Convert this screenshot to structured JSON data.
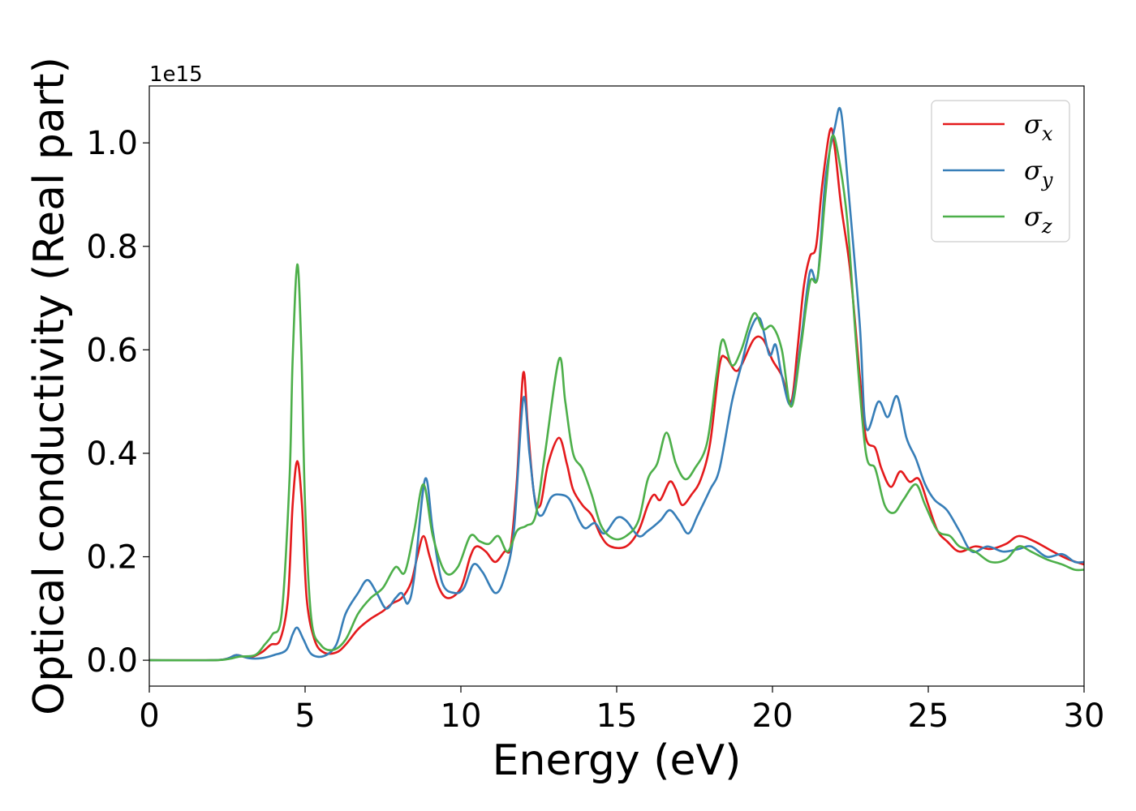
{
  "chart_data": {
    "type": "line",
    "xlabel": "Energy (eV)",
    "ylabel": "Optical conductivity (Real part)",
    "y_offset_label": "1e15",
    "y_scale": 1000000000000000.0,
    "xlim": [
      0,
      30
    ],
    "ylim": [
      -0.05,
      1.11
    ],
    "xticks": [
      0,
      5,
      10,
      15,
      20,
      25,
      30
    ],
    "xtick_labels": [
      "0",
      "5",
      "10",
      "15",
      "20",
      "25",
      "30"
    ],
    "yticks": [
      0.0,
      0.2,
      0.4,
      0.6,
      0.8,
      1.0
    ],
    "ytick_labels": [
      "0.0",
      "0.2",
      "0.4",
      "0.6",
      "0.8",
      "1.0"
    ],
    "grid": false,
    "legend_position": "top-right",
    "series": [
      {
        "name": "σ",
        "subscript": "x",
        "color": "#e41a1c",
        "points": [
          [
            0,
            0
          ],
          [
            2,
            0.0
          ],
          [
            2.5,
            0.003
          ],
          [
            2.8,
            0.01
          ],
          [
            3.2,
            0.005
          ],
          [
            3.6,
            0.015
          ],
          [
            3.9,
            0.03
          ],
          [
            4.2,
            0.04
          ],
          [
            4.45,
            0.12
          ],
          [
            4.6,
            0.3
          ],
          [
            4.75,
            0.385
          ],
          [
            4.9,
            0.3
          ],
          [
            5.05,
            0.12
          ],
          [
            5.3,
            0.04
          ],
          [
            5.6,
            0.015
          ],
          [
            6.0,
            0.015
          ],
          [
            6.3,
            0.03
          ],
          [
            6.7,
            0.06
          ],
          [
            7.1,
            0.08
          ],
          [
            7.5,
            0.095
          ],
          [
            7.8,
            0.11
          ],
          [
            8.1,
            0.12
          ],
          [
            8.4,
            0.15
          ],
          [
            8.6,
            0.2
          ],
          [
            8.8,
            0.24
          ],
          [
            9.0,
            0.2
          ],
          [
            9.3,
            0.14
          ],
          [
            9.6,
            0.12
          ],
          [
            10.0,
            0.14
          ],
          [
            10.3,
            0.2
          ],
          [
            10.5,
            0.22
          ],
          [
            10.8,
            0.21
          ],
          [
            11.1,
            0.19
          ],
          [
            11.4,
            0.21
          ],
          [
            11.6,
            0.22
          ],
          [
            11.8,
            0.35
          ],
          [
            12.0,
            0.555
          ],
          [
            12.15,
            0.45
          ],
          [
            12.35,
            0.32
          ],
          [
            12.55,
            0.3
          ],
          [
            12.8,
            0.38
          ],
          [
            13.15,
            0.43
          ],
          [
            13.4,
            0.38
          ],
          [
            13.6,
            0.33
          ],
          [
            13.9,
            0.3
          ],
          [
            14.2,
            0.28
          ],
          [
            14.5,
            0.24
          ],
          [
            14.8,
            0.22
          ],
          [
            15.3,
            0.22
          ],
          [
            15.7,
            0.25
          ],
          [
            16.0,
            0.3
          ],
          [
            16.2,
            0.32
          ],
          [
            16.4,
            0.31
          ],
          [
            16.7,
            0.345
          ],
          [
            16.9,
            0.33
          ],
          [
            17.1,
            0.3
          ],
          [
            17.4,
            0.32
          ],
          [
            17.7,
            0.35
          ],
          [
            18.0,
            0.42
          ],
          [
            18.3,
            0.57
          ],
          [
            18.5,
            0.585
          ],
          [
            18.8,
            0.56
          ],
          [
            19.0,
            0.57
          ],
          [
            19.4,
            0.62
          ],
          [
            19.7,
            0.62
          ],
          [
            20.0,
            0.58
          ],
          [
            20.3,
            0.55
          ],
          [
            20.6,
            0.5
          ],
          [
            20.8,
            0.6
          ],
          [
            21.0,
            0.72
          ],
          [
            21.2,
            0.78
          ],
          [
            21.4,
            0.8
          ],
          [
            21.6,
            0.92
          ],
          [
            21.85,
            1.025
          ],
          [
            22.0,
            0.99
          ],
          [
            22.2,
            0.88
          ],
          [
            22.5,
            0.75
          ],
          [
            22.8,
            0.55
          ],
          [
            23.0,
            0.43
          ],
          [
            23.3,
            0.41
          ],
          [
            23.5,
            0.37
          ],
          [
            23.8,
            0.335
          ],
          [
            24.1,
            0.365
          ],
          [
            24.4,
            0.345
          ],
          [
            24.7,
            0.35
          ],
          [
            25.0,
            0.3
          ],
          [
            25.3,
            0.25
          ],
          [
            25.6,
            0.23
          ],
          [
            26.0,
            0.21
          ],
          [
            26.5,
            0.22
          ],
          [
            27.0,
            0.215
          ],
          [
            27.5,
            0.225
          ],
          [
            27.9,
            0.24
          ],
          [
            28.4,
            0.23
          ],
          [
            29.0,
            0.21
          ],
          [
            29.5,
            0.195
          ],
          [
            30.0,
            0.185
          ]
        ]
      },
      {
        "name": "σ",
        "subscript": "y",
        "color": "#377eb8",
        "points": [
          [
            0,
            0
          ],
          [
            2,
            0.0
          ],
          [
            2.5,
            0.003
          ],
          [
            2.8,
            0.01
          ],
          [
            3.2,
            0.004
          ],
          [
            3.6,
            0.004
          ],
          [
            4.0,
            0.01
          ],
          [
            4.4,
            0.02
          ],
          [
            4.6,
            0.05
          ],
          [
            4.75,
            0.063
          ],
          [
            4.95,
            0.04
          ],
          [
            5.2,
            0.012
          ],
          [
            5.6,
            0.008
          ],
          [
            6.0,
            0.03
          ],
          [
            6.3,
            0.09
          ],
          [
            6.7,
            0.13
          ],
          [
            7.0,
            0.155
          ],
          [
            7.3,
            0.13
          ],
          [
            7.6,
            0.1
          ],
          [
            7.9,
            0.12
          ],
          [
            8.1,
            0.13
          ],
          [
            8.3,
            0.11
          ],
          [
            8.5,
            0.16
          ],
          [
            8.85,
            0.35
          ],
          [
            9.1,
            0.25
          ],
          [
            9.4,
            0.15
          ],
          [
            9.8,
            0.13
          ],
          [
            10.1,
            0.14
          ],
          [
            10.4,
            0.185
          ],
          [
            10.7,
            0.17
          ],
          [
            11.1,
            0.13
          ],
          [
            11.4,
            0.16
          ],
          [
            11.7,
            0.25
          ],
          [
            12.0,
            0.505
          ],
          [
            12.2,
            0.4
          ],
          [
            12.4,
            0.3
          ],
          [
            12.6,
            0.28
          ],
          [
            12.9,
            0.315
          ],
          [
            13.2,
            0.32
          ],
          [
            13.5,
            0.31
          ],
          [
            13.8,
            0.27
          ],
          [
            14.0,
            0.255
          ],
          [
            14.3,
            0.265
          ],
          [
            14.6,
            0.245
          ],
          [
            15.0,
            0.275
          ],
          [
            15.3,
            0.27
          ],
          [
            15.7,
            0.24
          ],
          [
            16.0,
            0.25
          ],
          [
            16.4,
            0.27
          ],
          [
            16.7,
            0.29
          ],
          [
            17.0,
            0.27
          ],
          [
            17.3,
            0.245
          ],
          [
            17.6,
            0.28
          ],
          [
            18.0,
            0.33
          ],
          [
            18.3,
            0.37
          ],
          [
            18.7,
            0.5
          ],
          [
            19.0,
            0.57
          ],
          [
            19.3,
            0.64
          ],
          [
            19.6,
            0.66
          ],
          [
            19.9,
            0.59
          ],
          [
            20.1,
            0.61
          ],
          [
            20.3,
            0.55
          ],
          [
            20.6,
            0.495
          ],
          [
            20.9,
            0.61
          ],
          [
            21.2,
            0.75
          ],
          [
            21.45,
            0.74
          ],
          [
            21.7,
            0.93
          ],
          [
            22.0,
            1.03
          ],
          [
            22.2,
            1.06
          ],
          [
            22.45,
            0.9
          ],
          [
            22.8,
            0.65
          ],
          [
            23.0,
            0.45
          ],
          [
            23.4,
            0.5
          ],
          [
            23.7,
            0.47
          ],
          [
            24.0,
            0.51
          ],
          [
            24.3,
            0.43
          ],
          [
            24.6,
            0.39
          ],
          [
            24.9,
            0.34
          ],
          [
            25.2,
            0.31
          ],
          [
            25.6,
            0.29
          ],
          [
            26.0,
            0.25
          ],
          [
            26.4,
            0.21
          ],
          [
            26.9,
            0.22
          ],
          [
            27.4,
            0.21
          ],
          [
            27.9,
            0.215
          ],
          [
            28.3,
            0.22
          ],
          [
            28.8,
            0.2
          ],
          [
            29.3,
            0.205
          ],
          [
            29.7,
            0.19
          ],
          [
            30.0,
            0.19
          ]
        ]
      },
      {
        "name": "σ",
        "subscript": "z",
        "color": "#4daf4a",
        "points": [
          [
            0,
            0
          ],
          [
            2,
            0.0
          ],
          [
            2.5,
            0.002
          ],
          [
            2.9,
            0.007
          ],
          [
            3.4,
            0.01
          ],
          [
            3.7,
            0.03
          ],
          [
            3.95,
            0.05
          ],
          [
            4.25,
            0.09
          ],
          [
            4.5,
            0.35
          ],
          [
            4.6,
            0.58
          ],
          [
            4.75,
            0.765
          ],
          [
            4.88,
            0.6
          ],
          [
            5.0,
            0.3
          ],
          [
            5.2,
            0.08
          ],
          [
            5.5,
            0.03
          ],
          [
            5.9,
            0.02
          ],
          [
            6.3,
            0.04
          ],
          [
            6.7,
            0.09
          ],
          [
            7.1,
            0.12
          ],
          [
            7.5,
            0.14
          ],
          [
            7.9,
            0.18
          ],
          [
            8.2,
            0.17
          ],
          [
            8.5,
            0.25
          ],
          [
            8.8,
            0.34
          ],
          [
            9.1,
            0.24
          ],
          [
            9.5,
            0.17
          ],
          [
            9.9,
            0.18
          ],
          [
            10.3,
            0.24
          ],
          [
            10.6,
            0.23
          ],
          [
            10.9,
            0.225
          ],
          [
            11.2,
            0.24
          ],
          [
            11.5,
            0.21
          ],
          [
            11.8,
            0.25
          ],
          [
            12.1,
            0.26
          ],
          [
            12.4,
            0.28
          ],
          [
            12.7,
            0.4
          ],
          [
            13.15,
            0.582
          ],
          [
            13.35,
            0.5
          ],
          [
            13.6,
            0.4
          ],
          [
            13.9,
            0.37
          ],
          [
            14.2,
            0.32
          ],
          [
            14.5,
            0.26
          ],
          [
            14.9,
            0.235
          ],
          [
            15.3,
            0.24
          ],
          [
            15.7,
            0.27
          ],
          [
            16.0,
            0.35
          ],
          [
            16.3,
            0.38
          ],
          [
            16.6,
            0.44
          ],
          [
            16.9,
            0.38
          ],
          [
            17.2,
            0.35
          ],
          [
            17.5,
            0.37
          ],
          [
            17.9,
            0.42
          ],
          [
            18.2,
            0.55
          ],
          [
            18.4,
            0.62
          ],
          [
            18.7,
            0.57
          ],
          [
            19.0,
            0.6
          ],
          [
            19.4,
            0.67
          ],
          [
            19.7,
            0.64
          ],
          [
            20.0,
            0.645
          ],
          [
            20.3,
            0.6
          ],
          [
            20.6,
            0.49
          ],
          [
            20.9,
            0.6
          ],
          [
            21.2,
            0.73
          ],
          [
            21.45,
            0.74
          ],
          [
            21.7,
            0.9
          ],
          [
            21.9,
            1.01
          ],
          [
            22.1,
            0.98
          ],
          [
            22.4,
            0.85
          ],
          [
            22.7,
            0.6
          ],
          [
            23.0,
            0.4
          ],
          [
            23.3,
            0.37
          ],
          [
            23.6,
            0.3
          ],
          [
            23.9,
            0.285
          ],
          [
            24.2,
            0.31
          ],
          [
            24.6,
            0.34
          ],
          [
            24.9,
            0.3
          ],
          [
            25.3,
            0.25
          ],
          [
            25.7,
            0.24
          ],
          [
            26.0,
            0.22
          ],
          [
            26.5,
            0.21
          ],
          [
            27.0,
            0.19
          ],
          [
            27.5,
            0.195
          ],
          [
            27.9,
            0.22
          ],
          [
            28.3,
            0.21
          ],
          [
            28.8,
            0.195
          ],
          [
            29.3,
            0.185
          ],
          [
            29.7,
            0.175
          ],
          [
            30.0,
            0.175
          ]
        ]
      }
    ]
  }
}
